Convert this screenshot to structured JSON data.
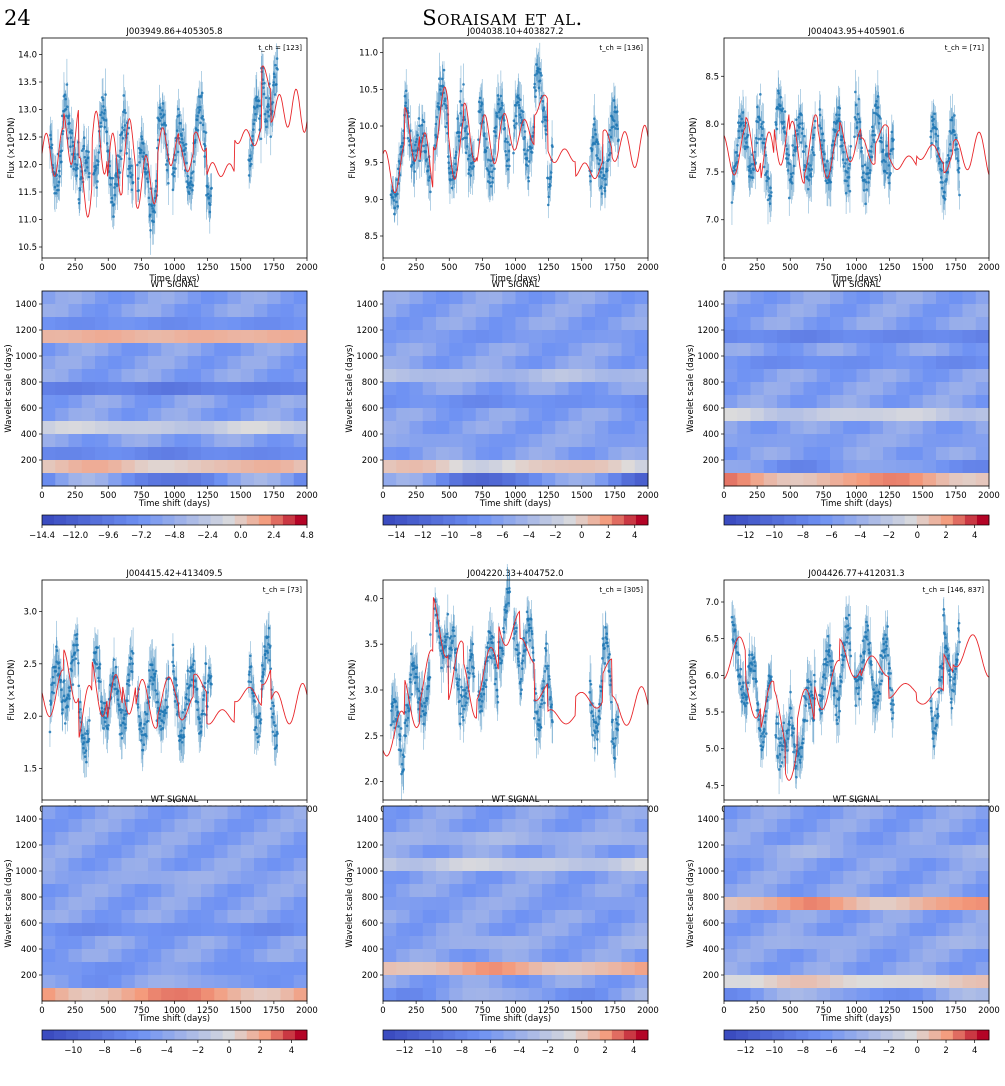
{
  "header": {
    "page_number": "24",
    "running_head": "Soraisam et al."
  },
  "common": {
    "light_xlabel": "Time (days)",
    "light_ylabel": "Flux (×10³DN)",
    "wt_title": "WT SIGNAL",
    "wt_xlabel": "Time shift (days)",
    "wt_ylabel": "Wavelet scale (days)",
    "x_ticks": [
      "0",
      "250",
      "500",
      "750",
      "1000",
      "1250",
      "1500",
      "1750",
      "2000"
    ],
    "wt_y_ticks": [
      "200",
      "400",
      "600",
      "800",
      "1000",
      "1200",
      "1400"
    ]
  },
  "colors": {
    "data": "#1f77b4",
    "model": "#e8262a",
    "cmap_low": "#3b4cc0",
    "cmap_mid": "#dddddd",
    "cmap_high": "#b40426"
  },
  "chart_data": [
    {
      "type": "scatter",
      "title": "J003949.86+405305.8",
      "tch": "t_ch = [123]",
      "xlabel": "Time (days)",
      "ylabel": "Flux (×10³DN)",
      "xlim": [
        0,
        2000
      ],
      "ylim": [
        10.3,
        14.3
      ],
      "y_ticks": [
        "10.5",
        "11.0",
        "11.5",
        "12.0",
        "12.5",
        "13.0",
        "13.5",
        "14.0"
      ],
      "series": [
        {
          "values": [
            [
              100,
              12.2
            ],
            [
              220,
              12.5
            ],
            [
              330,
              11.6
            ],
            [
              420,
              12.4
            ],
            [
              560,
              12.0
            ],
            [
              650,
              12.3
            ],
            [
              760,
              11.7
            ],
            [
              980,
              12.3
            ],
            [
              1080,
              12.1
            ],
            [
              1200,
              12.4
            ],
            [
              1280,
              11.9
            ],
            [
              1620,
              12.5
            ],
            [
              1690,
              13.6
            ],
            [
              1760,
              13.0
            ]
          ]
        }
      ]
    },
    {
      "type": "scatter",
      "title": "J004038.10+403827.2",
      "tch": "t_ch = [136]",
      "xlabel": "Time (days)",
      "ylabel": "Flux (×10³DN)",
      "xlim": [
        0,
        2000
      ],
      "ylim": [
        8.2,
        11.2
      ],
      "y_ticks": [
        "8.5",
        "9.0",
        "9.5",
        "10.0",
        "10.5",
        "11.0"
      ],
      "series": [
        {
          "values": [
            [
              100,
              9.4
            ],
            [
              220,
              9.9
            ],
            [
              330,
              9.5
            ],
            [
              420,
              10.1
            ],
            [
              560,
              9.7
            ],
            [
              650,
              9.9
            ],
            [
              760,
              9.8
            ],
            [
              980,
              9.9
            ],
            [
              1080,
              9.9
            ],
            [
              1200,
              10.3
            ],
            [
              1280,
              9.6
            ],
            [
              1620,
              9.4
            ],
            [
              1690,
              9.8
            ],
            [
              1760,
              9.7
            ]
          ]
        }
      ]
    },
    {
      "type": "scatter",
      "title": "J004043.95+405901.6",
      "tch": "t_ch = [71]",
      "xlabel": "Time (days)",
      "ylabel": "Flux (×10³DN)",
      "xlim": [
        0,
        2000
      ],
      "ylim": [
        6.6,
        8.9
      ],
      "y_ticks": [
        "7.0",
        "7.5",
        "8.0",
        "8.5"
      ],
      "series": [
        {
          "values": [
            [
              100,
              7.7
            ],
            [
              220,
              7.8
            ],
            [
              330,
              7.6
            ],
            [
              420,
              7.9
            ],
            [
              560,
              7.7
            ],
            [
              650,
              7.8
            ],
            [
              760,
              7.7
            ],
            [
              980,
              7.8
            ],
            [
              1080,
              7.7
            ],
            [
              1200,
              7.9
            ],
            [
              1280,
              7.6
            ],
            [
              1620,
              7.7
            ],
            [
              1690,
              7.6
            ],
            [
              1760,
              7.7
            ]
          ]
        }
      ]
    },
    {
      "type": "scatter",
      "title": "J004415.42+413409.5",
      "tch": "t_ch = [73]",
      "xlabel": "Time (days)",
      "ylabel": "Flux (×10³DN)",
      "xlim": [
        0,
        2000
      ],
      "ylim": [
        1.2,
        3.3
      ],
      "y_ticks": [
        "1.5",
        "2.0",
        "2.5",
        "3.0"
      ],
      "series": [
        {
          "values": [
            [
              100,
              2.2
            ],
            [
              220,
              2.4
            ],
            [
              330,
              2.0
            ],
            [
              420,
              2.3
            ],
            [
              560,
              2.1
            ],
            [
              650,
              2.3
            ],
            [
              760,
              2.1
            ],
            [
              980,
              2.2
            ],
            [
              1080,
              2.1
            ],
            [
              1200,
              2.3
            ],
            [
              1280,
              2.0
            ],
            [
              1620,
              2.2
            ],
            [
              1690,
              2.4
            ],
            [
              1760,
              2.1
            ]
          ]
        }
      ]
    },
    {
      "type": "scatter",
      "title": "J004220.33+404752.0",
      "tch": "t_ch = [305]",
      "xlabel": "Time (days)",
      "ylabel": "Flux (×10³DN)",
      "xlim": [
        0,
        2000
      ],
      "ylim": [
        1.8,
        4.2
      ],
      "y_ticks": [
        "2.0",
        "2.5",
        "3.0",
        "3.5",
        "4.0"
      ],
      "series": [
        {
          "values": [
            [
              100,
              2.5
            ],
            [
              220,
              2.9
            ],
            [
              330,
              3.1
            ],
            [
              420,
              3.7
            ],
            [
              560,
              3.2
            ],
            [
              650,
              3.0
            ],
            [
              760,
              3.2
            ],
            [
              980,
              3.7
            ],
            [
              1080,
              3.4
            ],
            [
              1200,
              3.0
            ],
            [
              1280,
              2.7
            ],
            [
              1620,
              2.9
            ],
            [
              1690,
              3.2
            ],
            [
              1760,
              2.8
            ]
          ]
        }
      ]
    },
    {
      "type": "scatter",
      "title": "J004426.77+412031.3",
      "tch": "t_ch = [146, 837]",
      "xlabel": "Time (days)",
      "ylabel": "Flux (×10³DN)",
      "xlim": [
        0,
        2000
      ],
      "ylim": [
        4.3,
        7.3
      ],
      "y_ticks": [
        "4.5",
        "5.0",
        "5.5",
        "6.0",
        "6.5",
        "7.0"
      ],
      "series": [
        {
          "values": [
            [
              100,
              6.2
            ],
            [
              220,
              5.8
            ],
            [
              330,
              5.5
            ],
            [
              420,
              5.4
            ],
            [
              500,
              5.0
            ],
            [
              600,
              5.4
            ],
            [
              760,
              5.9
            ],
            [
              980,
              6.2
            ],
            [
              1080,
              6.1
            ],
            [
              1200,
              6.1
            ],
            [
              1280,
              5.8
            ],
            [
              1620,
              5.7
            ],
            [
              1690,
              6.2
            ],
            [
              1760,
              6.3
            ]
          ]
        }
      ]
    },
    {
      "type": "heatmap",
      "title": "WT SIGNAL",
      "xlabel": "Time shift (days)",
      "ylabel": "Wavelet scale (days)",
      "xlim": [
        0,
        2000
      ],
      "ylim": [
        0,
        1500
      ],
      "colorbar_ticks": [
        "−14.4",
        "−12.0",
        "−9.6",
        "−7.2",
        "−4.8",
        "−2.4",
        "0.0",
        "2.4",
        "4.8"
      ],
      "colorbar_range": [
        -14.4,
        4.8
      ]
    },
    {
      "type": "heatmap",
      "title": "WT SIGNAL",
      "xlabel": "Time shift (days)",
      "ylabel": "Wavelet scale (days)",
      "xlim": [
        0,
        2000
      ],
      "ylim": [
        0,
        1500
      ],
      "colorbar_ticks": [
        "−14",
        "−12",
        "−10",
        "−8",
        "−6",
        "−4",
        "−2",
        "0",
        "2",
        "4"
      ],
      "colorbar_range": [
        -15,
        5
      ]
    },
    {
      "type": "heatmap",
      "title": "WT SIGNAL",
      "xlabel": "Time shift (days)",
      "ylabel": "Wavelet scale (days)",
      "xlim": [
        0,
        2000
      ],
      "ylim": [
        0,
        1500
      ],
      "colorbar_ticks": [
        "−12",
        "−10",
        "−8",
        "−6",
        "−4",
        "−2",
        "0",
        "2",
        "4"
      ],
      "colorbar_range": [
        -13.5,
        5
      ]
    },
    {
      "type": "heatmap",
      "title": "WT SIGNAL",
      "xlabel": "Time shift (days)",
      "ylabel": "Wavelet scale (days)",
      "xlim": [
        0,
        2000
      ],
      "ylim": [
        0,
        1500
      ],
      "colorbar_ticks": [
        "−10",
        "−8",
        "−6",
        "−4",
        "−2",
        "0",
        "2",
        "4"
      ],
      "colorbar_range": [
        -12,
        5
      ]
    },
    {
      "type": "heatmap",
      "title": "WT SIGNAL",
      "xlabel": "Time shift (days)",
      "ylabel": "Wavelet scale (days)",
      "xlim": [
        0,
        2000
      ],
      "ylim": [
        0,
        1500
      ],
      "colorbar_ticks": [
        "−12",
        "−10",
        "−8",
        "−6",
        "−4",
        "−2",
        "0",
        "2",
        "4"
      ],
      "colorbar_range": [
        -13.5,
        5
      ]
    },
    {
      "type": "heatmap",
      "title": "WT SIGNAL",
      "xlabel": "Time shift (days)",
      "ylabel": "Wavelet scale (days)",
      "xlim": [
        0,
        2000
      ],
      "ylim": [
        0,
        1500
      ],
      "colorbar_ticks": [
        "−12",
        "−10",
        "−8",
        "−6",
        "−4",
        "−2",
        "0",
        "2",
        "4"
      ],
      "colorbar_range": [
        -13.5,
        5
      ]
    }
  ]
}
